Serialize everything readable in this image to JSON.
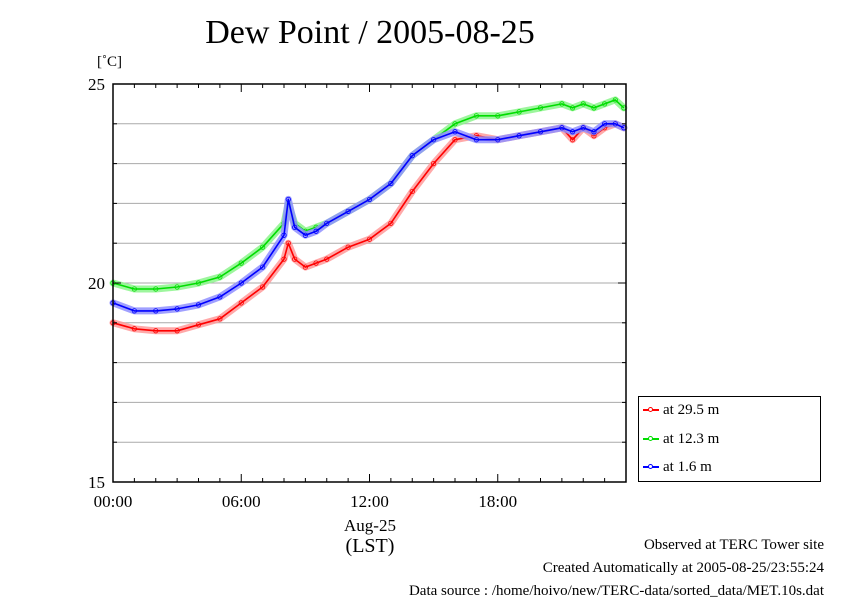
{
  "chart_data": {
    "type": "line",
    "title": "Dew Point / 2005-08-25",
    "ylabel": "[˚C]",
    "ylim": [
      15,
      25
    ],
    "yticks": [
      "15",
      "20",
      "25"
    ],
    "xlim": [
      "00:00",
      "24:00"
    ],
    "xticks": [
      "00:00",
      "06:00",
      "12:00",
      "18:00"
    ],
    "xlabel_date": "Aug-25",
    "xlabel_zone": "(LST)",
    "grid": true,
    "legend_position": "bottom-right-outside",
    "x_hours": [
      0,
      1,
      2,
      3,
      4,
      5,
      6,
      7,
      8,
      8.2,
      8.5,
      9,
      9.5,
      10,
      11,
      12,
      13,
      14,
      15,
      16,
      17,
      18,
      19,
      20,
      21,
      21.5,
      22,
      22.5,
      23,
      23.5,
      23.9
    ],
    "series": [
      {
        "name": "at 29.5 m",
        "color": "#ff0000",
        "values": [
          19.0,
          18.85,
          18.8,
          18.8,
          18.95,
          19.1,
          19.5,
          19.9,
          20.6,
          21.0,
          20.6,
          20.4,
          20.5,
          20.6,
          20.9,
          21.1,
          21.5,
          22.3,
          23.0,
          23.6,
          23.7,
          23.6,
          23.7,
          23.8,
          23.9,
          23.6,
          23.9,
          23.7,
          23.9,
          24.0,
          23.9
        ]
      },
      {
        "name": "at 12.3 m",
        "color": "#00dd00",
        "values": [
          20.0,
          19.85,
          19.85,
          19.9,
          20.0,
          20.15,
          20.5,
          20.9,
          21.5,
          22.0,
          21.5,
          21.3,
          21.4,
          21.5,
          21.8,
          22.1,
          22.5,
          23.2,
          23.6,
          24.0,
          24.2,
          24.2,
          24.3,
          24.4,
          24.5,
          24.4,
          24.5,
          24.4,
          24.5,
          24.6,
          24.4
        ]
      },
      {
        "name": "at 1.6 m",
        "color": "#0000ff",
        "values": [
          19.5,
          19.3,
          19.3,
          19.35,
          19.45,
          19.65,
          20.0,
          20.4,
          21.2,
          22.1,
          21.4,
          21.2,
          21.3,
          21.5,
          21.8,
          22.1,
          22.5,
          23.2,
          23.6,
          23.8,
          23.6,
          23.6,
          23.7,
          23.8,
          23.9,
          23.8,
          23.9,
          23.8,
          24.0,
          24.0,
          23.9
        ]
      }
    ]
  },
  "footer": {
    "line1": "Observed at TERC Tower site",
    "line2": "Created Automatically at 2005-08-25/23:55:24",
    "line3": "Data source : /home/hoivo/new/TERC-data/sorted_data/MET.10s.dat"
  }
}
